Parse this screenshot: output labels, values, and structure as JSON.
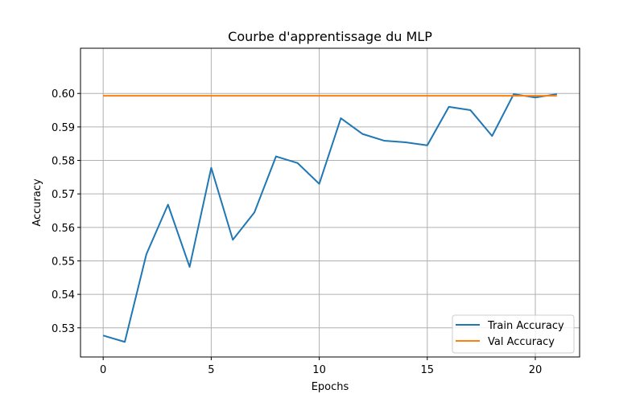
{
  "chart_data": {
    "type": "line",
    "title": "Courbe d'apprentissage du MLP",
    "xlabel": "Epochs",
    "ylabel": "Accuracy",
    "xlim": [
      -1.05,
      22.05
    ],
    "ylim": [
      0.5213,
      0.6135
    ],
    "x_ticks": [
      0,
      5,
      10,
      15,
      20
    ],
    "y_ticks": [
      0.53,
      0.54,
      0.55,
      0.56,
      0.57,
      0.58,
      0.59,
      0.6
    ],
    "y_tick_labels": [
      "0.53",
      "0.54",
      "0.55",
      "0.56",
      "0.57",
      "0.58",
      "0.59",
      "0.60"
    ],
    "grid": true,
    "legend_position": "lower-right",
    "x": [
      0,
      1,
      2,
      3,
      4,
      5,
      6,
      7,
      8,
      9,
      10,
      11,
      12,
      13,
      14,
      15,
      16,
      17,
      18,
      19,
      20,
      21
    ],
    "series": [
      {
        "name": "Train Accuracy",
        "color": "#1f77b4",
        "values": [
          0.5277,
          0.5258,
          0.552,
          0.5668,
          0.5482,
          0.5778,
          0.5563,
          0.5645,
          0.5812,
          0.5792,
          0.573,
          0.5926,
          0.5879,
          0.5859,
          0.5854,
          0.5845,
          0.596,
          0.595,
          0.5873,
          0.5998,
          0.5988,
          0.5998
        ]
      },
      {
        "name": "Val Accuracy",
        "color": "#ff7f0e",
        "values": [
          0.5993,
          0.5993,
          0.5993,
          0.5993,
          0.5993,
          0.5993,
          0.5993,
          0.5993,
          0.5993,
          0.5993,
          0.5993,
          0.5993,
          0.5993,
          0.5993,
          0.5993,
          0.5993,
          0.5993,
          0.5993,
          0.5993,
          0.5993,
          0.5993,
          0.5993
        ]
      }
    ]
  }
}
